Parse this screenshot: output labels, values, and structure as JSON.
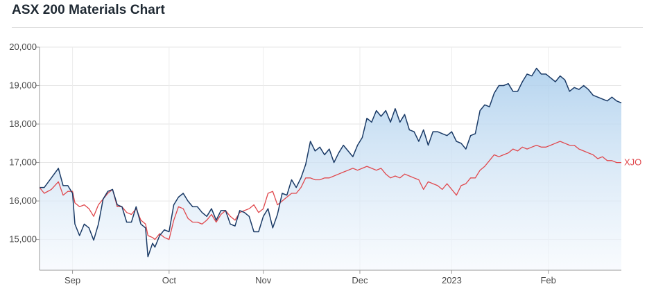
{
  "title": "ASX 200 Materials Chart",
  "chart_data": {
    "type": "line",
    "title": "ASX 200 Materials Chart",
    "xlabel": "",
    "ylabel": "",
    "ylim": [
      14200,
      20000
    ],
    "yticks": [
      15000,
      16000,
      17000,
      18000,
      19000,
      20000
    ],
    "ytick_labels": [
      "15,000",
      "16,000",
      "17,000",
      "18,000",
      "19,000",
      "20,000"
    ],
    "xtick_labels": [
      "Sep",
      "Oct",
      "Nov",
      "Dec",
      "2023",
      "Feb"
    ],
    "xtick_positions": [
      14,
      55,
      95,
      136,
      175,
      216
    ],
    "x_range": [
      0,
      238
    ],
    "grid": true,
    "legend": "end-label",
    "series": [
      {
        "name": "",
        "color": "#1a3a66",
        "fill_top": "#a9cdec",
        "fill_bottom": "#f4f8fd",
        "points": [
          [
            0,
            16350
          ],
          [
            2,
            16350
          ],
          [
            5,
            16600
          ],
          [
            8,
            16850
          ],
          [
            10,
            16400
          ],
          [
            12,
            16400
          ],
          [
            14,
            16200
          ],
          [
            15,
            15400
          ],
          [
            17,
            15100
          ],
          [
            19,
            15400
          ],
          [
            21,
            15300
          ],
          [
            23,
            14980
          ],
          [
            25,
            15400
          ],
          [
            27,
            16050
          ],
          [
            29,
            16250
          ],
          [
            31,
            16300
          ],
          [
            33,
            15900
          ],
          [
            35,
            15850
          ],
          [
            37,
            15450
          ],
          [
            39,
            15450
          ],
          [
            41,
            15850
          ],
          [
            43,
            15400
          ],
          [
            45,
            15300
          ],
          [
            46,
            14550
          ],
          [
            48,
            14900
          ],
          [
            49,
            14800
          ],
          [
            51,
            15100
          ],
          [
            53,
            15250
          ],
          [
            55,
            15200
          ],
          [
            57,
            15900
          ],
          [
            59,
            16100
          ],
          [
            61,
            16200
          ],
          [
            63,
            16000
          ],
          [
            65,
            15850
          ],
          [
            67,
            15850
          ],
          [
            69,
            15700
          ],
          [
            71,
            15600
          ],
          [
            73,
            15800
          ],
          [
            75,
            15500
          ],
          [
            77,
            15750
          ],
          [
            79,
            15750
          ],
          [
            81,
            15400
          ],
          [
            83,
            15350
          ],
          [
            85,
            15750
          ],
          [
            87,
            15700
          ],
          [
            89,
            15600
          ],
          [
            91,
            15200
          ],
          [
            93,
            15200
          ],
          [
            95,
            15600
          ],
          [
            97,
            15800
          ],
          [
            99,
            15300
          ],
          [
            101,
            15650
          ],
          [
            103,
            16200
          ],
          [
            105,
            16150
          ],
          [
            107,
            16550
          ],
          [
            109,
            16350
          ],
          [
            111,
            16600
          ],
          [
            113,
            16950
          ],
          [
            115,
            17550
          ],
          [
            117,
            17300
          ],
          [
            119,
            17400
          ],
          [
            121,
            17200
          ],
          [
            123,
            17350
          ],
          [
            125,
            17000
          ],
          [
            127,
            17250
          ],
          [
            129,
            17450
          ],
          [
            131,
            17300
          ],
          [
            133,
            17150
          ],
          [
            135,
            17450
          ],
          [
            137,
            17650
          ],
          [
            139,
            18150
          ],
          [
            141,
            18050
          ],
          [
            143,
            18350
          ],
          [
            145,
            18200
          ],
          [
            147,
            18350
          ],
          [
            149,
            18050
          ],
          [
            151,
            18400
          ],
          [
            153,
            18050
          ],
          [
            155,
            18250
          ],
          [
            157,
            17850
          ],
          [
            159,
            17800
          ],
          [
            161,
            17550
          ],
          [
            163,
            17850
          ],
          [
            165,
            17450
          ],
          [
            167,
            17800
          ],
          [
            169,
            17800
          ],
          [
            171,
            17750
          ],
          [
            173,
            17700
          ],
          [
            175,
            17800
          ],
          [
            177,
            17550
          ],
          [
            179,
            17500
          ],
          [
            181,
            17350
          ],
          [
            183,
            17700
          ],
          [
            185,
            17750
          ],
          [
            187,
            18350
          ],
          [
            189,
            18500
          ],
          [
            191,
            18450
          ],
          [
            193,
            18800
          ],
          [
            195,
            19000
          ],
          [
            197,
            19000
          ],
          [
            199,
            19050
          ],
          [
            201,
            18850
          ],
          [
            203,
            18850
          ],
          [
            205,
            19100
          ],
          [
            207,
            19300
          ],
          [
            209,
            19250
          ],
          [
            211,
            19450
          ],
          [
            213,
            19300
          ],
          [
            215,
            19300
          ],
          [
            217,
            19200
          ],
          [
            219,
            19100
          ],
          [
            221,
            19250
          ],
          [
            223,
            19150
          ],
          [
            225,
            18850
          ],
          [
            227,
            18950
          ],
          [
            229,
            18900
          ],
          [
            231,
            19000
          ],
          [
            233,
            18900
          ],
          [
            235,
            18750
          ],
          [
            237,
            18700
          ],
          [
            239,
            18650
          ],
          [
            241,
            18600
          ],
          [
            243,
            18700
          ],
          [
            245,
            18600
          ],
          [
            247,
            18550
          ]
        ]
      },
      {
        "name": "XJO",
        "color": "#e0474c",
        "points": [
          [
            0,
            16350
          ],
          [
            2,
            16200
          ],
          [
            5,
            16300
          ],
          [
            8,
            16500
          ],
          [
            10,
            16150
          ],
          [
            12,
            16250
          ],
          [
            14,
            16250
          ],
          [
            15,
            15950
          ],
          [
            17,
            15850
          ],
          [
            19,
            15900
          ],
          [
            21,
            15800
          ],
          [
            23,
            15600
          ],
          [
            25,
            15900
          ],
          [
            27,
            16050
          ],
          [
            29,
            16200
          ],
          [
            31,
            16300
          ],
          [
            33,
            15850
          ],
          [
            35,
            15850
          ],
          [
            37,
            15700
          ],
          [
            39,
            15650
          ],
          [
            41,
            15800
          ],
          [
            43,
            15500
          ],
          [
            45,
            15400
          ],
          [
            46,
            15100
          ],
          [
            48,
            15050
          ],
          [
            49,
            15000
          ],
          [
            51,
            15150
          ],
          [
            53,
            15050
          ],
          [
            55,
            15000
          ],
          [
            57,
            15500
          ],
          [
            59,
            15850
          ],
          [
            61,
            15800
          ],
          [
            63,
            15550
          ],
          [
            65,
            15450
          ],
          [
            67,
            15450
          ],
          [
            69,
            15400
          ],
          [
            71,
            15500
          ],
          [
            73,
            15650
          ],
          [
            75,
            15450
          ],
          [
            77,
            15650
          ],
          [
            79,
            15750
          ],
          [
            81,
            15600
          ],
          [
            83,
            15500
          ],
          [
            85,
            15700
          ],
          [
            87,
            15750
          ],
          [
            89,
            15800
          ],
          [
            91,
            15900
          ],
          [
            93,
            15700
          ],
          [
            95,
            15800
          ],
          [
            97,
            16200
          ],
          [
            99,
            16250
          ],
          [
            101,
            15900
          ],
          [
            103,
            16000
          ],
          [
            105,
            16100
          ],
          [
            107,
            16200
          ],
          [
            109,
            16200
          ],
          [
            111,
            16350
          ],
          [
            113,
            16600
          ],
          [
            115,
            16600
          ],
          [
            117,
            16550
          ],
          [
            119,
            16550
          ],
          [
            121,
            16600
          ],
          [
            123,
            16600
          ],
          [
            125,
            16650
          ],
          [
            127,
            16700
          ],
          [
            129,
            16750
          ],
          [
            131,
            16800
          ],
          [
            133,
            16850
          ],
          [
            135,
            16800
          ],
          [
            137,
            16850
          ],
          [
            139,
            16900
          ],
          [
            141,
            16850
          ],
          [
            143,
            16800
          ],
          [
            145,
            16850
          ],
          [
            147,
            16700
          ],
          [
            149,
            16600
          ],
          [
            151,
            16650
          ],
          [
            153,
            16600
          ],
          [
            155,
            16700
          ],
          [
            157,
            16650
          ],
          [
            159,
            16600
          ],
          [
            161,
            16550
          ],
          [
            163,
            16300
          ],
          [
            165,
            16500
          ],
          [
            167,
            16450
          ],
          [
            169,
            16400
          ],
          [
            171,
            16300
          ],
          [
            173,
            16450
          ],
          [
            175,
            16300
          ],
          [
            177,
            16150
          ],
          [
            179,
            16400
          ],
          [
            181,
            16450
          ],
          [
            183,
            16600
          ],
          [
            185,
            16600
          ],
          [
            187,
            16800
          ],
          [
            189,
            16900
          ],
          [
            191,
            17050
          ],
          [
            193,
            17200
          ],
          [
            195,
            17150
          ],
          [
            197,
            17200
          ],
          [
            199,
            17250
          ],
          [
            201,
            17350
          ],
          [
            203,
            17300
          ],
          [
            205,
            17400
          ],
          [
            207,
            17350
          ],
          [
            209,
            17400
          ],
          [
            211,
            17450
          ],
          [
            213,
            17400
          ],
          [
            215,
            17400
          ],
          [
            217,
            17450
          ],
          [
            219,
            17500
          ],
          [
            221,
            17550
          ],
          [
            223,
            17500
          ],
          [
            225,
            17450
          ],
          [
            227,
            17450
          ],
          [
            229,
            17350
          ],
          [
            231,
            17300
          ],
          [
            233,
            17250
          ],
          [
            235,
            17200
          ],
          [
            237,
            17100
          ],
          [
            239,
            17150
          ],
          [
            241,
            17050
          ],
          [
            243,
            17050
          ],
          [
            245,
            17000
          ],
          [
            247,
            17000
          ]
        ]
      }
    ]
  }
}
